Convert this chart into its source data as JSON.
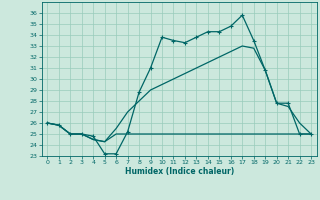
{
  "xlabel": "Humidex (Indice chaleur)",
  "bg_color": "#cce8dd",
  "line_color": "#006666",
  "grid_color": "#99ccbb",
  "xlim": [
    -0.5,
    23.5
  ],
  "ylim": [
    23,
    37
  ],
  "yticks": [
    23,
    24,
    25,
    26,
    27,
    28,
    29,
    30,
    31,
    32,
    33,
    34,
    35,
    36
  ],
  "xticks": [
    0,
    1,
    2,
    3,
    4,
    5,
    6,
    7,
    8,
    9,
    10,
    11,
    12,
    13,
    14,
    15,
    16,
    17,
    18,
    19,
    20,
    21,
    22,
    23
  ],
  "line1_x": [
    0,
    1,
    2,
    3,
    4,
    5,
    6,
    7,
    8,
    9,
    10,
    11,
    12,
    13,
    14,
    15,
    16,
    17,
    18,
    19,
    20,
    21,
    22,
    23
  ],
  "line1_y": [
    26.0,
    25.8,
    25.0,
    25.0,
    24.8,
    23.2,
    23.2,
    25.2,
    28.8,
    31.0,
    33.8,
    33.5,
    33.3,
    33.8,
    34.3,
    34.3,
    34.8,
    35.8,
    33.5,
    30.8,
    27.8,
    27.8,
    25.0,
    25.0
  ],
  "line2_x": [
    0,
    1,
    2,
    3,
    4,
    5,
    6,
    7,
    8,
    9,
    10,
    11,
    12,
    13,
    14,
    15,
    16,
    17,
    18,
    19,
    20,
    21,
    22,
    23
  ],
  "line2_y": [
    26.0,
    25.8,
    25.0,
    25.0,
    24.5,
    24.3,
    25.0,
    25.0,
    25.0,
    25.0,
    25.0,
    25.0,
    25.0,
    25.0,
    25.0,
    25.0,
    25.0,
    25.0,
    25.0,
    25.0,
    25.0,
    25.0,
    25.0,
    25.0
  ],
  "line3_x": [
    0,
    1,
    2,
    3,
    4,
    5,
    6,
    7,
    8,
    9,
    10,
    11,
    12,
    13,
    14,
    15,
    16,
    17,
    18,
    19,
    20,
    21,
    22,
    23
  ],
  "line3_y": [
    26.0,
    25.8,
    25.0,
    25.0,
    24.5,
    24.3,
    25.5,
    27.0,
    28.0,
    29.0,
    29.5,
    30.0,
    30.5,
    31.0,
    31.5,
    32.0,
    32.5,
    33.0,
    32.8,
    30.8,
    27.8,
    27.5,
    26.0,
    25.0
  ]
}
